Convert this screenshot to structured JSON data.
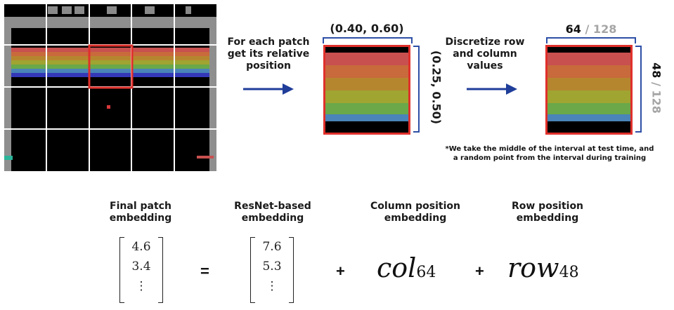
{
  "step1": {
    "line1": "For each patch",
    "line2": "get its relative",
    "line3": "position"
  },
  "step2": {
    "line1": "Discretize row",
    "line2": "and column",
    "line3": "values"
  },
  "relative": {
    "col_interval": "(0.40, 0.60)",
    "row_interval": "(0.25, 0.50)"
  },
  "discrete": {
    "col_value": "64",
    "col_total": "/ 128",
    "row_value": "48",
    "row_total": "/ 128"
  },
  "footnote": {
    "line1": "*We take the middle of the interval at test time, and",
    "line2": "a random point from the interval during training"
  },
  "equation": {
    "final_label_1": "Final patch",
    "final_label_2": "embedding",
    "resnet_label_1": "ResNet-based",
    "resnet_label_2": "embedding",
    "col_label_1": "Column position",
    "col_label_2": "embedding",
    "row_label_1": "Row position",
    "row_label_2": "embedding",
    "final_vec": [
      "4.6",
      "3.4",
      "⋮"
    ],
    "resnet_vec": [
      "7.6",
      "5.3",
      "⋮"
    ],
    "equals": "=",
    "plus": "+",
    "col_term": "col",
    "col_sub": "64",
    "row_term": "row",
    "row_sub": "48"
  },
  "game": {
    "score": "000 9 1"
  },
  "colors": {
    "arrow": "#1f3d99",
    "highlight": "#e0302b",
    "brace": "#2d4fa6",
    "rainbow": [
      "#c8504f",
      "#c86a3c",
      "#b6862f",
      "#a0a431",
      "#6aa84a",
      "#4a84b8",
      "#3438b8"
    ]
  }
}
